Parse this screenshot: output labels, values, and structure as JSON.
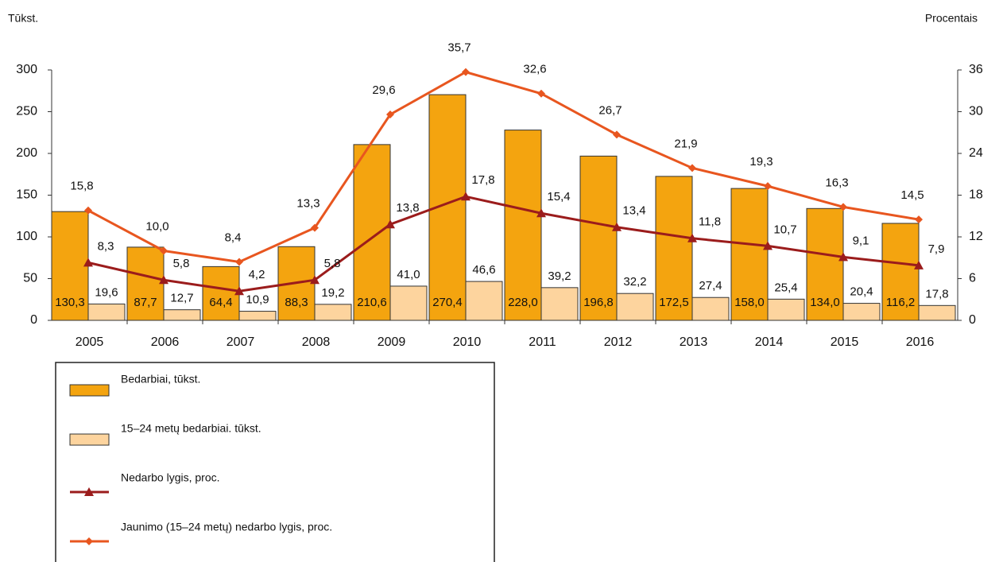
{
  "chart_data": {
    "type": "combo",
    "ylabel": "Tūkst.",
    "y2label": "Procentais",
    "categories": [
      "2005",
      "2006",
      "2007",
      "2008",
      "2009",
      "2010",
      "2011",
      "2012",
      "2013",
      "2014",
      "2015",
      "2016"
    ],
    "ylim": [
      0,
      300
    ],
    "yticks": [
      0,
      50,
      100,
      150,
      200,
      250,
      300
    ],
    "y2lim": [
      0,
      36
    ],
    "y2ticks": [
      0,
      6,
      12,
      18,
      24,
      30,
      36
    ],
    "series": [
      {
        "name": "Bedarbiai, tūkst.",
        "type": "bar",
        "color": "#f4a40f",
        "values": [
          130.3,
          87.7,
          64.4,
          88.3,
          210.6,
          270.4,
          228.0,
          196.8,
          172.5,
          158.0,
          134.0,
          116.2
        ],
        "value_labels": [
          "130,3",
          "87,7",
          "64,4",
          "88,3",
          "210,6",
          "270,4",
          "228,0",
          "196,8",
          "172,5",
          "158,0",
          "134,0",
          "116,2"
        ]
      },
      {
        "name": "15–24 metų bedarbiai. tūkst.",
        "type": "bar",
        "color": "#fdd49e",
        "values": [
          19.6,
          12.7,
          10.9,
          19.2,
          41.0,
          46.6,
          39.2,
          32.2,
          27.4,
          25.4,
          20.4,
          17.8
        ],
        "value_labels": [
          "19,6",
          "12,7",
          "10,9",
          "19,2",
          "41,0",
          "46,6",
          "39,2",
          "32,2",
          "27,4",
          "25,4",
          "20,4",
          "17,8"
        ]
      },
      {
        "name": "Nedarbo lygis, proc.",
        "type": "line",
        "axis": "y2",
        "color": "#9b1c1c",
        "marker": "triangle",
        "values": [
          8.3,
          5.8,
          4.2,
          5.8,
          13.8,
          17.8,
          15.4,
          13.4,
          11.8,
          10.7,
          9.1,
          7.9
        ],
        "value_labels": [
          "8,3",
          "5,8",
          "4,2",
          "5,8",
          "13,8",
          "17,8",
          "15,4",
          "13,4",
          "11,8",
          "10,7",
          "9,1",
          "7,9"
        ]
      },
      {
        "name": "Jaunimo (15–24 metų) nedarbo lygis, proc.",
        "type": "line",
        "axis": "y2",
        "color": "#e8561f",
        "marker": "diamond",
        "values": [
          15.8,
          10.0,
          8.4,
          13.3,
          29.6,
          35.7,
          32.6,
          26.7,
          21.9,
          19.3,
          16.3,
          14.5
        ],
        "value_labels": [
          "15,8",
          "10,0",
          "8,4",
          "13,3",
          "29,6",
          "35,7",
          "32,6",
          "26,7",
          "21,9",
          "19,3",
          "16,3",
          "14,5"
        ]
      }
    ]
  }
}
